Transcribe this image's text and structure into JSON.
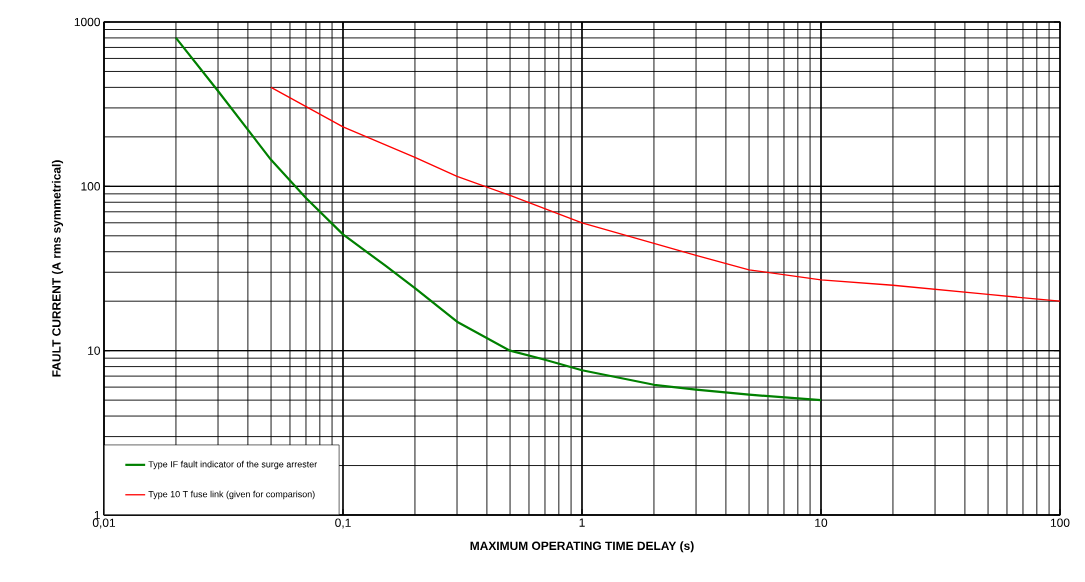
{
  "chart_data": {
    "type": "line",
    "xlabel": "MAXIMUM OPERATING TIME DELAY (s)",
    "ylabel": "FAULT CURRENT (A rms symmetrical)",
    "log": "xy",
    "grid": true,
    "legend": "bottom left",
    "marker": "none",
    "line_style": "solid",
    "xlim": [
      0.01,
      100
    ],
    "ylim": [
      1,
      1000
    ],
    "xticks": [
      {
        "value": 0.01,
        "label": "0,01"
      },
      {
        "value": 0.1,
        "label": "0,1"
      },
      1,
      10,
      100
    ],
    "yticks": [
      1,
      10,
      100,
      1000
    ],
    "series": [
      {
        "name": "Type IF fault indicator of the surge arrester",
        "color": "#008000",
        "x": [
          0.02,
          0.03,
          0.05,
          0.07,
          0.1,
          0.15,
          0.2,
          0.3,
          0.5,
          0.7,
          1,
          2,
          3,
          5,
          10
        ],
        "values": [
          800,
          380,
          145,
          85,
          51,
          33,
          24,
          15,
          10,
          8.8,
          7.6,
          6.2,
          5.8,
          5.4,
          5
        ]
      },
      {
        "name": "Type 10 T fuse link (given for comparison)",
        "color": "#ff0000",
        "x": [
          0.05,
          0.1,
          0.2,
          0.3,
          0.5,
          1,
          2,
          3,
          5,
          10,
          20,
          50,
          100
        ],
        "values": [
          400,
          230,
          150,
          115,
          88,
          60,
          45,
          38,
          31,
          27,
          25,
          22,
          20
        ]
      }
    ]
  }
}
